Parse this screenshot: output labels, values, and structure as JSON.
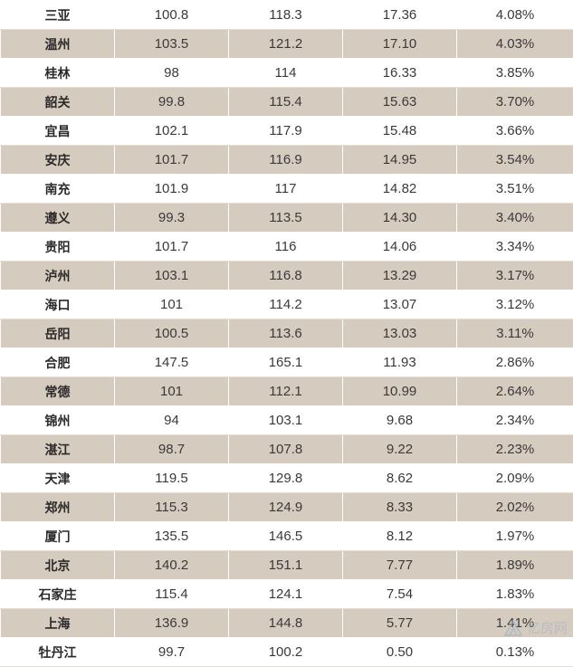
{
  "table": {
    "rows": [
      [
        "三亚",
        "100.8",
        "118.3",
        "17.36",
        "4.08%"
      ],
      [
        "温州",
        "103.5",
        "121.2",
        "17.10",
        "4.03%"
      ],
      [
        "桂林",
        "98",
        "114",
        "16.33",
        "3.85%"
      ],
      [
        "韶关",
        "99.8",
        "115.4",
        "15.63",
        "3.70%"
      ],
      [
        "宜昌",
        "102.1",
        "117.9",
        "15.48",
        "3.66%"
      ],
      [
        "安庆",
        "101.7",
        "116.9",
        "14.95",
        "3.54%"
      ],
      [
        "南充",
        "101.9",
        "117",
        "14.82",
        "3.51%"
      ],
      [
        "遵义",
        "99.3",
        "113.5",
        "14.30",
        "3.40%"
      ],
      [
        "贵阳",
        "101.7",
        "116",
        "14.06",
        "3.34%"
      ],
      [
        "泸州",
        "103.1",
        "116.8",
        "13.29",
        "3.17%"
      ],
      [
        "海口",
        "101",
        "114.2",
        "13.07",
        "3.12%"
      ],
      [
        "岳阳",
        "100.5",
        "113.6",
        "13.03",
        "3.11%"
      ],
      [
        "合肥",
        "147.5",
        "165.1",
        "11.93",
        "2.86%"
      ],
      [
        "常德",
        "101",
        "112.1",
        "10.99",
        "2.64%"
      ],
      [
        "锦州",
        "94",
        "103.1",
        "9.68",
        "2.34%"
      ],
      [
        "湛江",
        "98.7",
        "107.8",
        "9.22",
        "2.23%"
      ],
      [
        "天津",
        "119.5",
        "129.8",
        "8.62",
        "2.09%"
      ],
      [
        "郑州",
        "115.3",
        "124.9",
        "8.33",
        "2.02%"
      ],
      [
        "厦门",
        "135.5",
        "146.5",
        "8.12",
        "1.97%"
      ],
      [
        "北京",
        "140.2",
        "151.1",
        "7.77",
        "1.89%"
      ],
      [
        "石家庄",
        "115.4",
        "124.1",
        "7.54",
        "1.83%"
      ],
      [
        "上海",
        "136.9",
        "144.8",
        "5.77",
        "1.41%"
      ],
      [
        "牡丹江",
        "99.7",
        "100.2",
        "0.50",
        "0.13%"
      ]
    ]
  },
  "colors": {
    "shaded_row": "#d6cbbf",
    "plain_row": "#ffffff",
    "text": "#3a3a3a"
  },
  "watermark": {
    "icon": "watermark-logo-icon",
    "text": "亿房网"
  }
}
